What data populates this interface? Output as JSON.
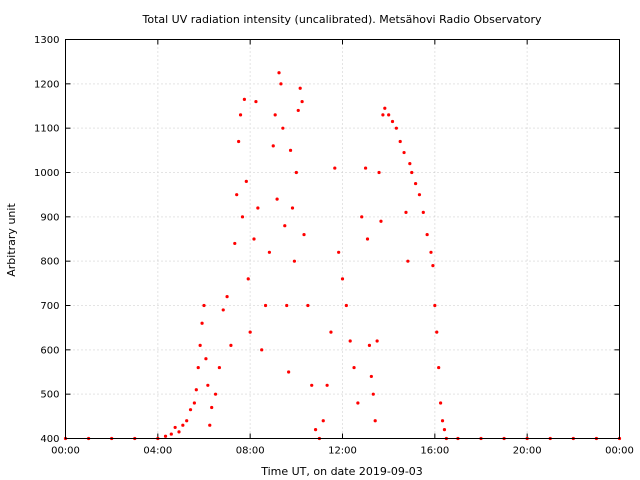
{
  "chart_data": {
    "type": "scatter",
    "title": "Total UV radiation intensity (uncalibrated). Metsähovi Radio Observatory",
    "xlabel": "Time UT, on date 2019-09-03",
    "ylabel": "Arbitrary unit",
    "xlim": [
      "00:00",
      "24:00"
    ],
    "ylim": [
      400,
      1300
    ],
    "x_ticks": [
      "00:00",
      "04:00",
      "08:00",
      "12:00",
      "16:00",
      "20:00",
      "00:00"
    ],
    "y_ticks": [
      "400",
      "500",
      "600",
      "700",
      "800",
      "900",
      "1000",
      "1100",
      "1200",
      "1300"
    ],
    "grid": true,
    "legend": false,
    "series": [
      {
        "color": "#ff0000",
        "marker": "point",
        "points": [
          [
            "00:00",
            400
          ],
          [
            "01:00",
            400
          ],
          [
            "02:00",
            400
          ],
          [
            "03:00",
            400
          ],
          [
            "04:00",
            400
          ],
          [
            "04:20",
            405
          ],
          [
            "04:35",
            410
          ],
          [
            "04:45",
            425
          ],
          [
            "04:55",
            415
          ],
          [
            "05:05",
            430
          ],
          [
            "05:15",
            440
          ],
          [
            "05:25",
            465
          ],
          [
            "05:35",
            480
          ],
          [
            "05:40",
            510
          ],
          [
            "05:45",
            560
          ],
          [
            "05:50",
            610
          ],
          [
            "05:55",
            660
          ],
          [
            "06:00",
            700
          ],
          [
            "06:05",
            580
          ],
          [
            "06:10",
            520
          ],
          [
            "06:15",
            430
          ],
          [
            "06:20",
            470
          ],
          [
            "06:30",
            500
          ],
          [
            "06:40",
            560
          ],
          [
            "06:50",
            690
          ],
          [
            "07:00",
            720
          ],
          [
            "07:10",
            610
          ],
          [
            "07:20",
            840
          ],
          [
            "07:25",
            950
          ],
          [
            "07:30",
            1070
          ],
          [
            "07:35",
            1130
          ],
          [
            "07:40",
            900
          ],
          [
            "07:45",
            1165
          ],
          [
            "07:50",
            980
          ],
          [
            "07:55",
            760
          ],
          [
            "08:00",
            640
          ],
          [
            "08:10",
            850
          ],
          [
            "08:15",
            1160
          ],
          [
            "08:20",
            920
          ],
          [
            "08:30",
            600
          ],
          [
            "08:40",
            700
          ],
          [
            "08:50",
            820
          ],
          [
            "09:00",
            1060
          ],
          [
            "09:05",
            1130
          ],
          [
            "09:10",
            940
          ],
          [
            "09:15",
            1225
          ],
          [
            "09:20",
            1200
          ],
          [
            "09:25",
            1100
          ],
          [
            "09:30",
            880
          ],
          [
            "09:35",
            700
          ],
          [
            "09:40",
            550
          ],
          [
            "09:45",
            1050
          ],
          [
            "09:50",
            920
          ],
          [
            "09:55",
            800
          ],
          [
            "10:00",
            1000
          ],
          [
            "10:05",
            1140
          ],
          [
            "10:10",
            1190
          ],
          [
            "10:15",
            1160
          ],
          [
            "10:20",
            860
          ],
          [
            "10:30",
            700
          ],
          [
            "10:40",
            520
          ],
          [
            "10:50",
            420
          ],
          [
            "11:00",
            400
          ],
          [
            "11:10",
            440
          ],
          [
            "11:20",
            520
          ],
          [
            "11:30",
            640
          ],
          [
            "11:40",
            1010
          ],
          [
            "11:50",
            820
          ],
          [
            "12:00",
            760
          ],
          [
            "12:10",
            700
          ],
          [
            "12:20",
            620
          ],
          [
            "12:30",
            560
          ],
          [
            "12:40",
            480
          ],
          [
            "12:50",
            900
          ],
          [
            "13:00",
            1010
          ],
          [
            "13:05",
            850
          ],
          [
            "13:10",
            610
          ],
          [
            "13:15",
            540
          ],
          [
            "13:20",
            500
          ],
          [
            "13:25",
            440
          ],
          [
            "13:30",
            620
          ],
          [
            "13:35",
            1000
          ],
          [
            "13:40",
            890
          ],
          [
            "13:45",
            1130
          ],
          [
            "13:50",
            1145
          ],
          [
            "14:00",
            1130
          ],
          [
            "14:10",
            1115
          ],
          [
            "14:20",
            1100
          ],
          [
            "14:30",
            1070
          ],
          [
            "14:40",
            1045
          ],
          [
            "14:45",
            910
          ],
          [
            "14:50",
            800
          ],
          [
            "14:55",
            1020
          ],
          [
            "15:00",
            1000
          ],
          [
            "15:10",
            975
          ],
          [
            "15:20",
            950
          ],
          [
            "15:30",
            910
          ],
          [
            "15:40",
            860
          ],
          [
            "15:50",
            820
          ],
          [
            "15:55",
            790
          ],
          [
            "16:00",
            700
          ],
          [
            "16:05",
            640
          ],
          [
            "16:10",
            560
          ],
          [
            "16:15",
            480
          ],
          [
            "16:20",
            440
          ],
          [
            "16:25",
            420
          ],
          [
            "16:30",
            400
          ],
          [
            "17:00",
            400
          ],
          [
            "18:00",
            400
          ],
          [
            "19:00",
            400
          ],
          [
            "20:00",
            400
          ],
          [
            "21:00",
            400
          ],
          [
            "22:00",
            400
          ],
          [
            "23:00",
            400
          ],
          [
            "24:00",
            400
          ]
        ]
      }
    ]
  }
}
